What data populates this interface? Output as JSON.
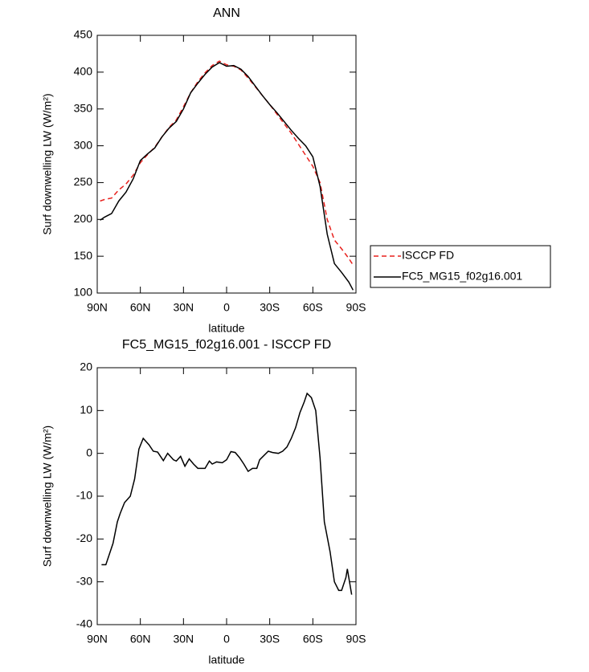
{
  "chart_data": [
    {
      "type": "line",
      "title": "ANN",
      "xlabel": "latitude",
      "ylabel": "Surf downwelling LW (W/m²)",
      "x": [
        88,
        85,
        80,
        75,
        70,
        65,
        60,
        55,
        50,
        45,
        40,
        35,
        30,
        25,
        20,
        15,
        10,
        5,
        0,
        -5,
        -10,
        -15,
        -20,
        -25,
        -30,
        -35,
        -40,
        -45,
        -50,
        -55,
        -60,
        -65,
        -70,
        -75,
        -80,
        -85,
        -88
      ],
      "xlim": [
        90,
        -90
      ],
      "xticks": [
        {
          "value": 90,
          "label": "90N"
        },
        {
          "value": 60,
          "label": "60N"
        },
        {
          "value": 30,
          "label": "30N"
        },
        0,
        {
          "value": -30,
          "label": "30S"
        },
        {
          "value": -60,
          "label": "60S"
        },
        {
          "value": -90,
          "label": "90S"
        }
      ],
      "ylim": [
        100,
        450
      ],
      "yticks": [
        100,
        150,
        200,
        250,
        300,
        350,
        400,
        450
      ],
      "legend_loc": "outside-right",
      "series": [
        {
          "name": "ISCCP FD",
          "color": "#e8211d",
          "linestyle": "dashed",
          "values": [
            225,
            227,
            229,
            240,
            248,
            260,
            277,
            288,
            298,
            312,
            325,
            335,
            353,
            372,
            387,
            399,
            409,
            415,
            410,
            408,
            403,
            392,
            380,
            368,
            356,
            343,
            330,
            317,
            302,
            287,
            272,
            250,
            200,
            172,
            160,
            147,
            138
          ]
        },
        {
          "name": "FC5_MG15_f02g16.001",
          "color": "#000000",
          "linestyle": "solid",
          "values": [
            199,
            203,
            208,
            225,
            237,
            255,
            280,
            289,
            297,
            312,
            324,
            333,
            350,
            372,
            385,
            397,
            407,
            413,
            408,
            409,
            404,
            394,
            381,
            368,
            356,
            345,
            333,
            321,
            310,
            300,
            285,
            245,
            180,
            140,
            128,
            115,
            104
          ]
        }
      ]
    },
    {
      "type": "line",
      "title": "FC5_MG15_f02g16.001 - ISCCP FD",
      "xlabel": "latitude",
      "ylabel": "Surf downwelling LW (W/m²)",
      "x": [
        87,
        84,
        79,
        76,
        74,
        71,
        67,
        64,
        61,
        58,
        54,
        51,
        48,
        44,
        41,
        37,
        35,
        32,
        29,
        26,
        23,
        20,
        17,
        15,
        12,
        10,
        7,
        3,
        0,
        -3,
        -6,
        -9,
        -12,
        -15,
        -18,
        -21,
        -23,
        -29,
        -32,
        -36,
        -39,
        -42,
        -45,
        -48,
        -51,
        -54,
        -56,
        -59,
        -62,
        -65,
        -68,
        -72,
        -75,
        -78,
        -80,
        -83,
        -84,
        -87
      ],
      "xlim": [
        90,
        -90
      ],
      "xticks": [
        {
          "value": 90,
          "label": "90N"
        },
        {
          "value": 60,
          "label": "60N"
        },
        {
          "value": 30,
          "label": "30N"
        },
        0,
        {
          "value": -30,
          "label": "30S"
        },
        {
          "value": -60,
          "label": "60S"
        },
        {
          "value": -90,
          "label": "90S"
        }
      ],
      "ylim": [
        -40,
        20
      ],
      "yticks": [
        -40,
        -30,
        -20,
        -10,
        0,
        10,
        20
      ],
      "series": [
        {
          "color": "#000000",
          "linestyle": "solid",
          "values": [
            -26,
            -26,
            -21,
            -16,
            -14,
            -11.5,
            -10,
            -6,
            1,
            3.5,
            2,
            0.5,
            0.3,
            -1.7,
            0,
            -1.5,
            -1.8,
            -0.7,
            -3,
            -1.3,
            -2.5,
            -3.5,
            -3.5,
            -3.5,
            -1.8,
            -2.5,
            -2,
            -2.2,
            -1.5,
            0.4,
            0.2,
            -1,
            -2.5,
            -4.2,
            -3.5,
            -3.5,
            -1.5,
            0.5,
            0.2,
            0,
            0.5,
            1.5,
            3.5,
            6,
            9.5,
            12,
            14,
            13,
            10,
            -1,
            -16,
            -23,
            -30,
            -32,
            -32,
            -29,
            -27,
            -33
          ]
        }
      ]
    }
  ]
}
